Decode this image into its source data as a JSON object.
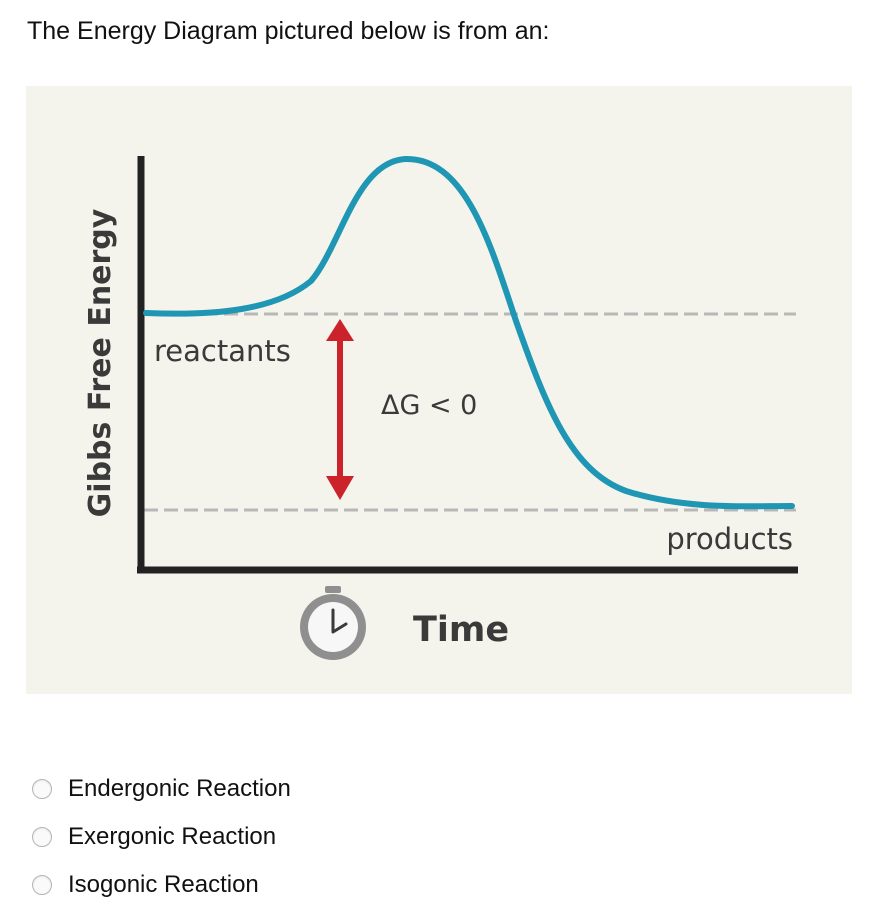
{
  "question": {
    "text": "The Energy Diagram pictured below is from an:"
  },
  "diagram": {
    "y_axis_label": "Gibbs Free Energy",
    "x_axis_label": "Time",
    "reactants_label": "reactants",
    "products_label": "products",
    "delta_g_label": "ΔG < 0",
    "colors": {
      "background": "#f4f4ec",
      "axis": "#222222",
      "curve": "#1e96b4",
      "arrow": "#cc2229",
      "dashed": "#b8b8b8",
      "text": "#3a3a3a"
    },
    "icons": {
      "time": "stopwatch-icon"
    }
  },
  "options": [
    {
      "label": "Endergonic Reaction",
      "selected": false
    },
    {
      "label": "Exergonic Reaction",
      "selected": false
    },
    {
      "label": "Isogonic Reaction",
      "selected": false
    }
  ]
}
